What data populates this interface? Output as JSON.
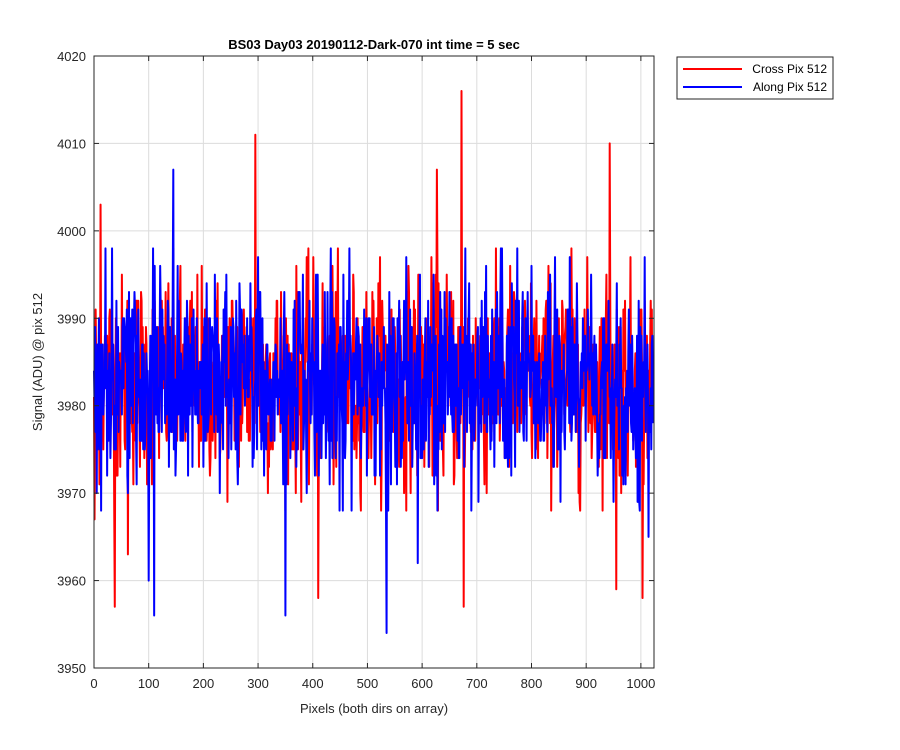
{
  "chart_data": {
    "type": "line",
    "title": "BS03 Day03 20190112-Dark-070 int time = 5 sec",
    "xlabel": "Pixels (both dirs on array)",
    "ylabel": "Signal (ADU) @ pix 512",
    "xlim": [
      0,
      1024
    ],
    "ylim": [
      3950,
      4020
    ],
    "xticks": [
      0,
      100,
      200,
      300,
      400,
      500,
      600,
      700,
      800,
      900,
      1000
    ],
    "yticks": [
      3950,
      3960,
      3970,
      3980,
      3990,
      4000,
      4010,
      4020
    ],
    "grid": true,
    "legend_position": "outside-top-right",
    "series": [
      {
        "name": "Cross Pix 512",
        "color": "#ff0000",
        "mean": 3983,
        "noise_sd": 6,
        "n_points": 1024,
        "notable_points": [
          {
            "x": 1,
            "y": 3967
          },
          {
            "x": 12,
            "y": 4003
          },
          {
            "x": 38,
            "y": 4007
          },
          {
            "x": 38,
            "y": 3957
          },
          {
            "x": 62,
            "y": 3963
          },
          {
            "x": 295,
            "y": 4011
          },
          {
            "x": 410,
            "y": 3958
          },
          {
            "x": 627,
            "y": 4007
          },
          {
            "x": 672,
            "y": 4016
          },
          {
            "x": 676,
            "y": 3957
          },
          {
            "x": 943,
            "y": 4010
          },
          {
            "x": 955,
            "y": 3959
          },
          {
            "x": 1003,
            "y": 3958
          }
        ]
      },
      {
        "name": "Along Pix 512",
        "color": "#0000ff",
        "mean": 3983,
        "noise_sd": 6,
        "n_points": 1024,
        "notable_points": [
          {
            "x": 5,
            "y": 3970
          },
          {
            "x": 100,
            "y": 3960
          },
          {
            "x": 110,
            "y": 3956
          },
          {
            "x": 145,
            "y": 4007
          },
          {
            "x": 350,
            "y": 3956
          },
          {
            "x": 535,
            "y": 3954
          },
          {
            "x": 592,
            "y": 3962
          },
          {
            "x": 1014,
            "y": 3965
          }
        ]
      }
    ]
  }
}
